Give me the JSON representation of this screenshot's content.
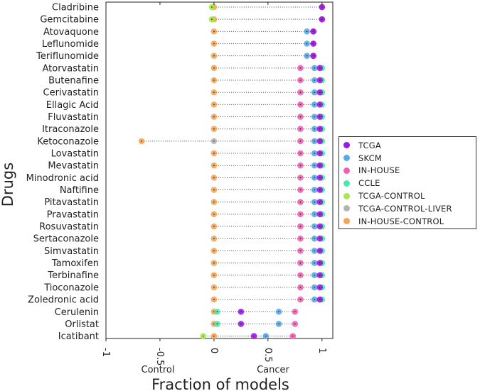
{
  "chart_data": {
    "type": "scatter",
    "title": "",
    "xlabel": "Fraction of models",
    "ylabel": "Drugs",
    "xlim": [
      -1,
      1.1
    ],
    "xticks": [
      "-1",
      "-0.5",
      "0",
      "0.5",
      "1"
    ],
    "xtick_values": [
      -1,
      -0.5,
      0,
      0.5,
      1
    ],
    "direction_labels": {
      "negative": "Control",
      "positive": "Cancer"
    },
    "legend_position": "right",
    "series": [
      {
        "name": "TCGA",
        "color": "#9b19e6"
      },
      {
        "name": "SKCM",
        "color": "#5aa8e8"
      },
      {
        "name": "IN-HOUSE",
        "color": "#f060b0"
      },
      {
        "name": "CCLE",
        "color": "#4ee8a8"
      },
      {
        "name": "TCGA-CONTROL",
        "color": "#a8e84a"
      },
      {
        "name": "TCGA-CONTROL-LIVER",
        "color": "#b4b4b4"
      },
      {
        "name": "IN-HOUSE-CONTROL",
        "color": "#f5a455"
      }
    ],
    "drugs": [
      {
        "name": "Cladribine",
        "TCGA": 1.0,
        "IN-HOUSE": 1.0,
        "TCGA-CONTROL": -0.02,
        "IN-HOUSE-CONTROL": 0.0
      },
      {
        "name": "Gemcitabine",
        "TCGA": 1.0,
        "IN-HOUSE": 1.0,
        "TCGA-CONTROL": -0.02,
        "IN-HOUSE-CONTROL": 0.0
      },
      {
        "name": "Atovaquone",
        "TCGA": 0.92,
        "SKCM": 0.86,
        "IN-HOUSE": 0.92,
        "IN-HOUSE-CONTROL": 0.0
      },
      {
        "name": "Leflunomide",
        "TCGA": 0.92,
        "SKCM": 0.86,
        "IN-HOUSE": 0.92,
        "IN-HOUSE-CONTROL": 0.0
      },
      {
        "name": "Teriflunomide",
        "TCGA": 0.92,
        "SKCM": 0.86,
        "IN-HOUSE": 0.92,
        "IN-HOUSE-CONTROL": 0.0
      },
      {
        "name": "Atorvastatin",
        "TCGA": 0.98,
        "SKCM": 0.93,
        "IN-HOUSE": 0.8,
        "CCLE": 1.0,
        "IN-HOUSE-CONTROL": 0.0
      },
      {
        "name": "Butenafine",
        "TCGA": 0.98,
        "SKCM": 0.93,
        "IN-HOUSE": 0.8,
        "CCLE": 1.0,
        "IN-HOUSE-CONTROL": 0.0
      },
      {
        "name": "Cerivastatin",
        "TCGA": 0.98,
        "SKCM": 0.93,
        "IN-HOUSE": 0.8,
        "CCLE": 1.0,
        "IN-HOUSE-CONTROL": 0.0
      },
      {
        "name": "Ellagic Acid",
        "TCGA": 0.98,
        "SKCM": 0.93,
        "IN-HOUSE": 0.8,
        "CCLE": 1.0,
        "IN-HOUSE-CONTROL": 0.0
      },
      {
        "name": "Fluvastatin",
        "TCGA": 0.98,
        "SKCM": 0.93,
        "IN-HOUSE": 0.8,
        "CCLE": 1.0,
        "IN-HOUSE-CONTROL": 0.0
      },
      {
        "name": "Itraconazole",
        "TCGA": 0.98,
        "SKCM": 0.93,
        "IN-HOUSE": 0.8,
        "CCLE": 1.0,
        "IN-HOUSE-CONTROL": 0.0
      },
      {
        "name": "Ketoconazole",
        "TCGA": 0.98,
        "SKCM": 0.93,
        "IN-HOUSE": 0.8,
        "CCLE": 1.0,
        "TCGA-CONTROL-LIVER": 0.0,
        "IN-HOUSE-CONTROL": -0.67
      },
      {
        "name": "Lovastatin",
        "TCGA": 0.98,
        "SKCM": 0.93,
        "IN-HOUSE": 0.8,
        "CCLE": 1.0,
        "IN-HOUSE-CONTROL": 0.0
      },
      {
        "name": "Mevastatin",
        "TCGA": 0.98,
        "SKCM": 0.93,
        "IN-HOUSE": 0.8,
        "CCLE": 1.0,
        "IN-HOUSE-CONTROL": 0.0
      },
      {
        "name": "Minodronic acid",
        "TCGA": 0.98,
        "SKCM": 0.93,
        "IN-HOUSE": 0.8,
        "CCLE": 1.0,
        "IN-HOUSE-CONTROL": 0.0
      },
      {
        "name": "Naftifine",
        "TCGA": 0.98,
        "SKCM": 0.93,
        "IN-HOUSE": 0.8,
        "CCLE": 1.0,
        "IN-HOUSE-CONTROL": 0.0
      },
      {
        "name": "Pitavastatin",
        "TCGA": 0.98,
        "SKCM": 0.93,
        "IN-HOUSE": 0.8,
        "CCLE": 1.0,
        "IN-HOUSE-CONTROL": 0.0
      },
      {
        "name": "Pravastatin",
        "TCGA": 0.98,
        "SKCM": 0.93,
        "IN-HOUSE": 0.8,
        "CCLE": 1.0,
        "IN-HOUSE-CONTROL": 0.0
      },
      {
        "name": "Rosuvastatin",
        "TCGA": 0.98,
        "SKCM": 0.93,
        "IN-HOUSE": 0.8,
        "CCLE": 1.0,
        "IN-HOUSE-CONTROL": 0.0
      },
      {
        "name": "Sertaconazole",
        "TCGA": 0.98,
        "SKCM": 0.93,
        "IN-HOUSE": 0.8,
        "CCLE": 1.0,
        "IN-HOUSE-CONTROL": 0.0
      },
      {
        "name": "Simvastatin",
        "TCGA": 0.98,
        "SKCM": 0.93,
        "IN-HOUSE": 0.8,
        "CCLE": 1.0,
        "IN-HOUSE-CONTROL": 0.0
      },
      {
        "name": "Tamoxifen",
        "TCGA": 0.98,
        "SKCM": 0.93,
        "IN-HOUSE": 0.8,
        "CCLE": 1.0,
        "IN-HOUSE-CONTROL": 0.0
      },
      {
        "name": "Terbinafine",
        "TCGA": 0.98,
        "SKCM": 0.93,
        "IN-HOUSE": 0.8,
        "CCLE": 1.0,
        "IN-HOUSE-CONTROL": 0.0
      },
      {
        "name": "Tioconazole",
        "TCGA": 0.98,
        "SKCM": 0.93,
        "IN-HOUSE": 0.8,
        "CCLE": 1.0,
        "IN-HOUSE-CONTROL": 0.0
      },
      {
        "name": "Zoledronic acid",
        "TCGA": 0.98,
        "SKCM": 0.93,
        "IN-HOUSE": 0.8,
        "CCLE": 1.0,
        "IN-HOUSE-CONTROL": 0.0
      },
      {
        "name": "Cerulenin",
        "TCGA": 0.25,
        "SKCM": 0.6,
        "IN-HOUSE": 0.75,
        "CCLE": 0.03,
        "IN-HOUSE-CONTROL": 0.0
      },
      {
        "name": "Orlistat",
        "TCGA": 0.25,
        "SKCM": 0.6,
        "IN-HOUSE": 0.75,
        "CCLE": 0.03,
        "IN-HOUSE-CONTROL": 0.0
      },
      {
        "name": "Icatibant",
        "TCGA": 0.37,
        "SKCM": 0.48,
        "IN-HOUSE": 0.73,
        "TCGA-CONTROL": -0.1,
        "IN-HOUSE-CONTROL": 0.0
      }
    ]
  }
}
